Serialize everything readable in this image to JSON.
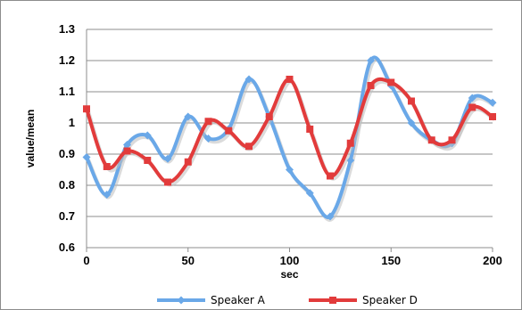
{
  "chart_data": {
    "type": "line",
    "title": "",
    "xlabel": "sec",
    "ylabel": "value/mean",
    "xlim": [
      0,
      200
    ],
    "ylim": [
      0.6,
      1.3
    ],
    "x_ticks": [
      "0",
      "50",
      "100",
      "150",
      "200"
    ],
    "y_ticks": [
      "0.6",
      "0.7",
      "0.8",
      "0.9",
      "1",
      "1.1",
      "1.2",
      "1.3"
    ],
    "grid": "horizontal",
    "legend_position": "bottom",
    "smooth": true,
    "series": [
      {
        "name": "Speaker A",
        "color": "#6aa8e8",
        "marker": "diamond",
        "x": [
          0,
          10,
          20,
          30,
          40,
          50,
          60,
          70,
          80,
          90,
          100,
          110,
          120,
          130,
          140,
          150,
          160,
          170,
          180,
          190,
          200
        ],
        "y": [
          0.89,
          0.77,
          0.93,
          0.96,
          0.885,
          1.02,
          0.95,
          0.98,
          1.14,
          1.02,
          0.85,
          0.775,
          0.7,
          0.88,
          1.2,
          1.12,
          1.0,
          0.945,
          0.935,
          1.08,
          1.065
        ]
      },
      {
        "name": "Speaker D",
        "color": "#e23b3b",
        "marker": "square",
        "x": [
          0,
          10,
          20,
          30,
          40,
          50,
          60,
          70,
          80,
          90,
          100,
          110,
          120,
          130,
          140,
          150,
          160,
          170,
          180,
          190,
          200
        ],
        "y": [
          1.045,
          0.86,
          0.91,
          0.88,
          0.81,
          0.875,
          1.005,
          0.975,
          0.925,
          1.02,
          1.14,
          0.98,
          0.83,
          0.935,
          1.12,
          1.13,
          1.07,
          0.945,
          0.945,
          1.05,
          1.02
        ]
      }
    ]
  }
}
